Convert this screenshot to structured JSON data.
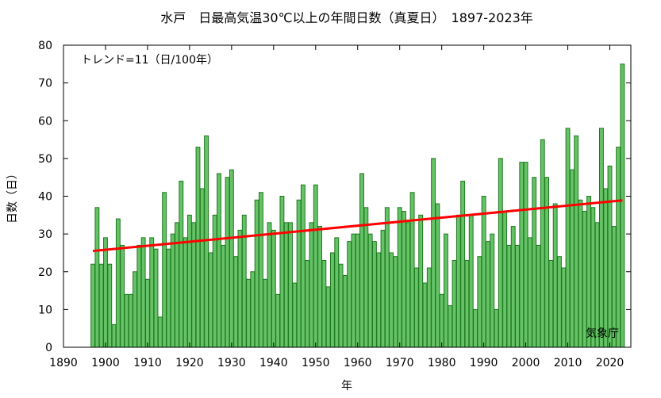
{
  "chart_data": {
    "type": "bar",
    "title": "水戸　日最高気温30℃以上の年間日数（真夏日）　1897-2023年",
    "xlabel": "年",
    "ylabel": "日数（日）",
    "xlim": [
      1890,
      2025
    ],
    "ylim": [
      0,
      80
    ],
    "xticks": [
      1890,
      1900,
      1910,
      1920,
      1930,
      1940,
      1950,
      1960,
      1970,
      1980,
      1990,
      2000,
      2010,
      2020
    ],
    "yticks": [
      0,
      10,
      20,
      30,
      40,
      50,
      60,
      70,
      80
    ],
    "trend_label": "トレンド=11（日/100年）",
    "source_label": "気象庁",
    "grid": false,
    "colors": {
      "bar_fill": "#66c266",
      "bar_stroke": "#1f7a1f",
      "trend": "#ff0000"
    },
    "trend": {
      "x": [
        1897,
        2023
      ],
      "y": [
        25.5,
        38.9
      ]
    },
    "series": [
      {
        "years": [
          1897,
          1898,
          1899,
          1900,
          1901,
          1902,
          1903,
          1904,
          1905,
          1906,
          1907,
          1908,
          1909,
          1910,
          1911,
          1912,
          1913,
          1914,
          1915,
          1916,
          1917,
          1918,
          1919,
          1920,
          1921,
          1922,
          1923,
          1924,
          1925,
          1926,
          1927,
          1928,
          1929,
          1930,
          1931,
          1932,
          1933,
          1934,
          1935,
          1936,
          1937,
          1938,
          1939,
          1940,
          1941,
          1942,
          1943,
          1944,
          1945,
          1946,
          1947,
          1948,
          1949,
          1950,
          1951,
          1952,
          1953,
          1954,
          1955,
          1956,
          1957,
          1958,
          1959,
          1960,
          1961,
          1962,
          1963,
          1964,
          1965,
          1966,
          1967,
          1968,
          1969,
          1970,
          1971,
          1972,
          1973,
          1974,
          1975,
          1976,
          1977,
          1978,
          1979,
          1980,
          1981,
          1982,
          1983,
          1984,
          1985,
          1986,
          1987,
          1988,
          1989,
          1990,
          1991,
          1992,
          1993,
          1994,
          1995,
          1996,
          1997,
          1998,
          1999,
          2000,
          2001,
          2002,
          2003,
          2004,
          2005,
          2006,
          2007,
          2008,
          2009,
          2010,
          2011,
          2012,
          2013,
          2014,
          2015,
          2016,
          2017,
          2018,
          2019,
          2020,
          2021,
          2022,
          2023
        ],
        "values": [
          22,
          37,
          22,
          29,
          22,
          6,
          34,
          27,
          14,
          14,
          20,
          27,
          29,
          18,
          29,
          26,
          8,
          41,
          26,
          30,
          33,
          44,
          29,
          35,
          33,
          53,
          42,
          56,
          25,
          35,
          46,
          27,
          45,
          47,
          24,
          31,
          35,
          18,
          20,
          39,
          41,
          18,
          33,
          31,
          14,
          40,
          33,
          33,
          17,
          39,
          43,
          23,
          33,
          43,
          32,
          23,
          16,
          25,
          29,
          22,
          19,
          28,
          30,
          30,
          46,
          37,
          30,
          28,
          25,
          31,
          37,
          25,
          24,
          37,
          36,
          33,
          41,
          21,
          35,
          17,
          21,
          50,
          38,
          14,
          30,
          11,
          23,
          35,
          44,
          23,
          35,
          10,
          24,
          40,
          28,
          30,
          10,
          50,
          36,
          27,
          32,
          27,
          49,
          49,
          29,
          45,
          27,
          55,
          45,
          23,
          38,
          24,
          21,
          58,
          47,
          56,
          39,
          36,
          40,
          37,
          33,
          58,
          42,
          48,
          32,
          53,
          75
        ]
      }
    ]
  }
}
